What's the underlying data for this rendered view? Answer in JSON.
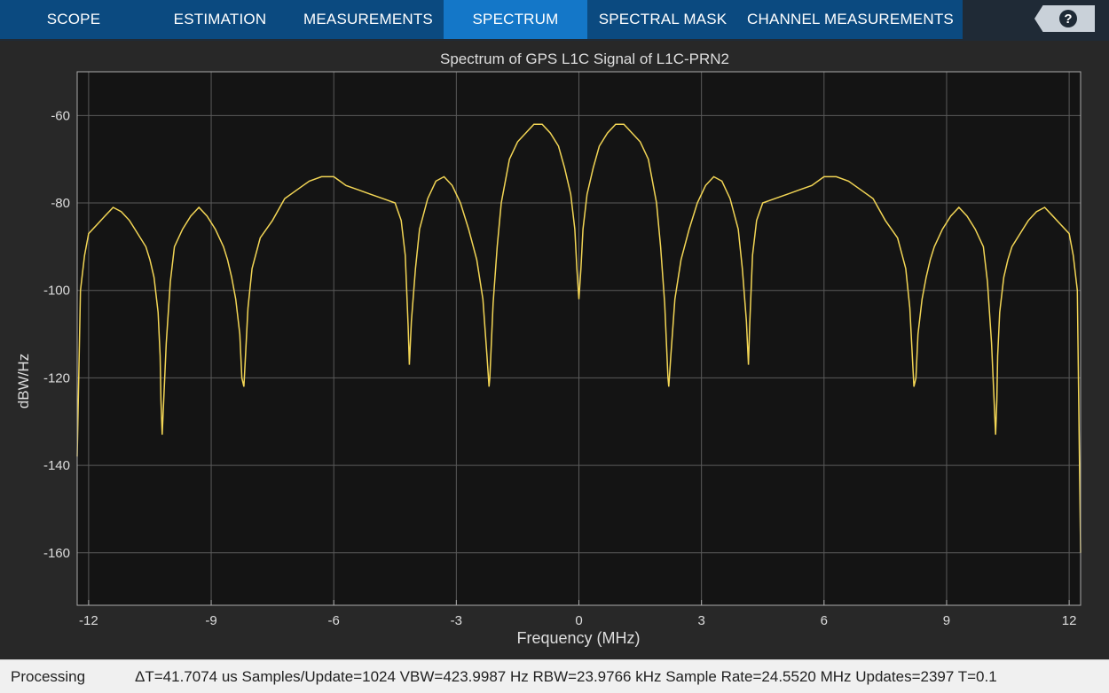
{
  "tabs": [
    {
      "label": "SCOPE",
      "active": false
    },
    {
      "label": "ESTIMATION",
      "active": false
    },
    {
      "label": "MEASUREMENTS",
      "active": false
    },
    {
      "label": "SPECTRUM",
      "active": true
    },
    {
      "label": "SPECTRAL MASK",
      "active": false
    },
    {
      "label": "CHANNEL MEASUREMENTS",
      "active": false
    }
  ],
  "help": {
    "icon": "help-icon",
    "label": "?"
  },
  "colors": {
    "accent": "#1477c8",
    "tab_strip": "#0b4a80",
    "trace": "#f2d555",
    "plot_bg": "#141414",
    "figure_bg": "#282828"
  },
  "chart_data": {
    "type": "line",
    "title": "Spectrum of GPS L1C Signal of L1C-PRN2",
    "xlabel": "Frequency (MHz)",
    "ylabel": "dBW/Hz",
    "xlim": [
      -12.28,
      12.28
    ],
    "ylim": [
      -172,
      -50
    ],
    "xticks": [
      -12,
      -9,
      -6,
      -3,
      0,
      3,
      6,
      9,
      12
    ],
    "yticks": [
      -160,
      -140,
      -120,
      -100,
      -80,
      -60
    ],
    "grid": true,
    "series": [
      {
        "x": [
          -12.28,
          -12.2,
          -12.1,
          -12.0,
          -11.8,
          -11.6,
          -11.4,
          -11.2,
          -11.0,
          -10.8,
          -10.6,
          -10.5,
          -10.4,
          -10.3,
          -10.25,
          -10.23,
          -10.2,
          -10.1,
          -10.0,
          -9.9,
          -9.7,
          -9.5,
          -9.3,
          -9.1,
          -8.9,
          -8.7,
          -8.6,
          -8.5,
          -8.4,
          -8.3,
          -8.25,
          -8.2,
          -8.1,
          -8.0,
          -7.8,
          -7.5,
          -7.2,
          -6.9,
          -6.6,
          -6.3,
          -6.0,
          -5.7,
          -5.4,
          -5.1,
          -4.8,
          -4.5,
          -4.35,
          -4.25,
          -4.18,
          -4.15,
          -4.1,
          -4.0,
          -3.9,
          -3.7,
          -3.5,
          -3.3,
          -3.1,
          -2.9,
          -2.7,
          -2.5,
          -2.35,
          -2.25,
          -2.2,
          -2.18,
          -2.1,
          -2.0,
          -1.9,
          -1.7,
          -1.5,
          -1.3,
          -1.1,
          -0.9,
          -0.7,
          -0.5,
          -0.35,
          -0.2,
          -0.1,
          -0.05,
          0.0,
          0.05,
          0.1,
          0.2,
          0.35,
          0.5,
          0.7,
          0.9,
          1.1,
          1.3,
          1.5,
          1.7,
          1.9,
          2.0,
          2.1,
          2.18,
          2.2,
          2.25,
          2.35,
          2.5,
          2.7,
          2.9,
          3.1,
          3.3,
          3.5,
          3.7,
          3.9,
          4.0,
          4.1,
          4.15,
          4.18,
          4.25,
          4.35,
          4.5,
          4.8,
          5.1,
          5.4,
          5.7,
          6.0,
          6.3,
          6.6,
          6.9,
          7.2,
          7.5,
          7.8,
          8.0,
          8.1,
          8.2,
          8.25,
          8.3,
          8.4,
          8.5,
          8.6,
          8.7,
          8.9,
          9.1,
          9.3,
          9.5,
          9.7,
          9.9,
          10.0,
          10.1,
          10.2,
          10.23,
          10.25,
          10.3,
          10.4,
          10.5,
          10.6,
          10.8,
          11.0,
          11.2,
          11.4,
          11.6,
          11.8,
          12.0,
          12.1,
          12.2,
          12.28
        ],
        "y": [
          -138,
          -100,
          -92,
          -87,
          -85,
          -83,
          -81,
          -82,
          -84,
          -87,
          -90,
          -93,
          -97,
          -105,
          -115,
          -125,
          -133,
          -112,
          -98,
          -90,
          -86,
          -83,
          -81,
          -83,
          -86,
          -90,
          -93,
          -97,
          -102,
          -110,
          -120,
          -122,
          -104,
          -95,
          -88,
          -84,
          -79,
          -77,
          -75,
          -74,
          -74,
          -76,
          -77,
          -78,
          -79,
          -80,
          -84,
          -92,
          -108,
          -117,
          -107,
          -95,
          -86,
          -79,
          -75,
          -74,
          -76,
          -80,
          -86,
          -93,
          -102,
          -115,
          -122,
          -120,
          -103,
          -90,
          -80,
          -70,
          -66,
          -64,
          -62,
          -62,
          -64,
          -67,
          -72,
          -78,
          -86,
          -95,
          -102,
          -95,
          -86,
          -78,
          -72,
          -67,
          -64,
          -62,
          -62,
          -64,
          -66,
          -70,
          -80,
          -90,
          -103,
          -120,
          -122,
          -115,
          -102,
          -93,
          -86,
          -80,
          -76,
          -74,
          -75,
          -79,
          -86,
          -95,
          -107,
          -117,
          -108,
          -92,
          -84,
          -80,
          -79,
          -78,
          -77,
          -76,
          -74,
          -74,
          -75,
          -77,
          -79,
          -84,
          -88,
          -95,
          -104,
          -122,
          -120,
          -110,
          -102,
          -97,
          -93,
          -90,
          -86,
          -83,
          -81,
          -83,
          -86,
          -90,
          -98,
          -112,
          -133,
          -125,
          -115,
          -105,
          -97,
          -93,
          -90,
          -87,
          -84,
          -82,
          -81,
          -83,
          -85,
          -87,
          -92,
          -100,
          -160
        ]
      }
    ]
  },
  "status": {
    "state": "Processing",
    "details": "ΔT=41.7074 us  Samples/Update=1024  VBW=423.9987 Hz  RBW=23.9766 kHz  Sample Rate=24.5520 MHz  Updates=2397  T=0.1"
  }
}
